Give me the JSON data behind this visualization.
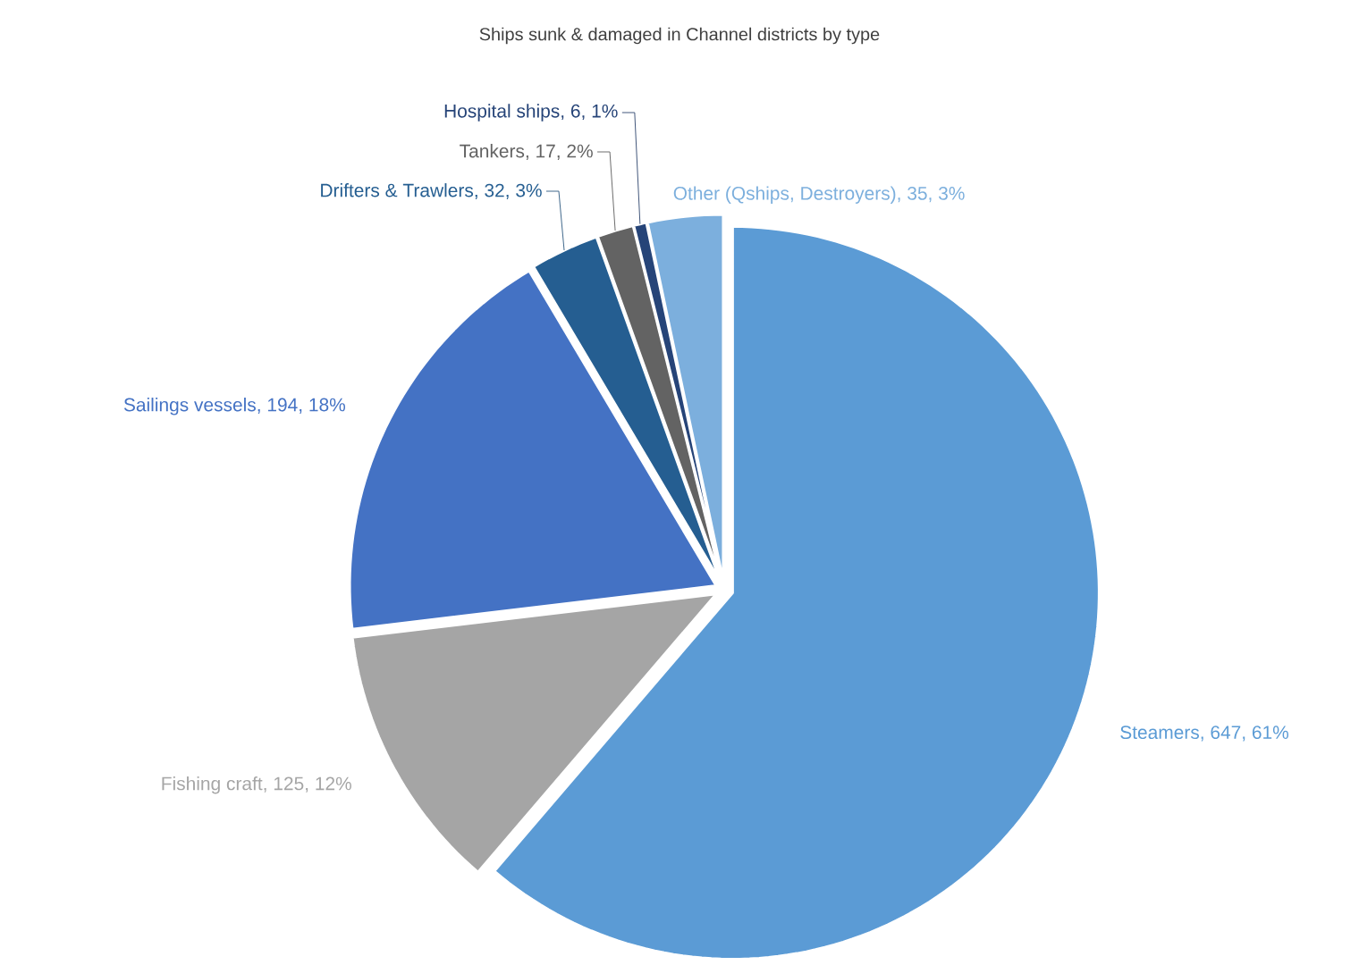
{
  "chart_data": {
    "type": "pie",
    "title": "Ships sunk & damaged in Channel districts by type",
    "categories": [
      "Steamers, 647, 61%",
      "Fishing craft, 125, 12%",
      "Sailings vessels, 194, 18%",
      "Drifters & Trawlers, 32, 3%",
      "Tankers, 17, 2%",
      "Hospital ships, 6, 1%",
      "Other (Qships, Destroyers), 35, 3%"
    ],
    "values": [
      647,
      125,
      194,
      32,
      17,
      6,
      35
    ],
    "colors": [
      "#5b9bd5",
      "#a5a5a5",
      "#4472c4",
      "#255e91",
      "#636363",
      "#264478",
      "#7cafdd"
    ]
  }
}
